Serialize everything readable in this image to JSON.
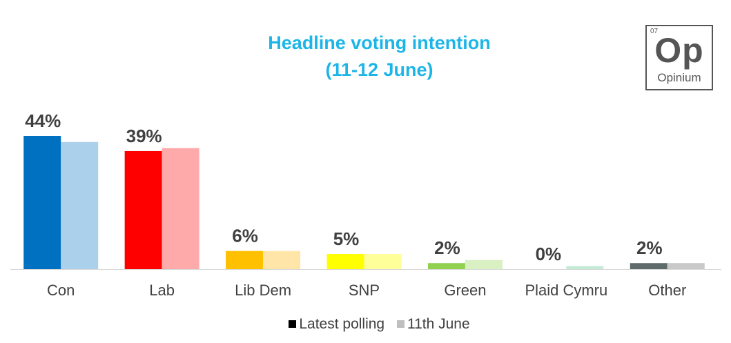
{
  "title": "Headline voting intention",
  "subtitle": "(11-12 June)",
  "logo": {
    "number": "07",
    "symbol": "Op",
    "name": "Opinium"
  },
  "legend": [
    {
      "label": "Latest polling",
      "color": "#000000"
    },
    {
      "label": "11th June",
      "color": "#bfbfbf"
    }
  ],
  "chart_data": {
    "type": "bar",
    "title": "Headline voting intention",
    "subtitle": "(11-12 June)",
    "categories": [
      "Con",
      "Lab",
      "Lib Dem",
      "SNP",
      "Green",
      "Plaid Cymru",
      "Other"
    ],
    "series": [
      {
        "name": "Latest polling",
        "values": [
          44,
          39,
          6,
          5,
          2,
          0,
          2
        ],
        "labels": [
          "44%",
          "39%",
          "6%",
          "5%",
          "2%",
          "0%",
          "2%"
        ],
        "colors": [
          "#0070c0",
          "#ff0000",
          "#ffc000",
          "#ffff00",
          "#92d050",
          "#00b050",
          "#5f6a6a"
        ]
      },
      {
        "name": "11th June",
        "values": [
          42,
          40,
          6,
          5,
          3,
          1,
          2
        ],
        "colors": [
          "#abd0eb",
          "#ffaaaa",
          "#ffe6a8",
          "#ffff99",
          "#d9f0c2",
          "#c2ead4",
          "#c9c9c9"
        ]
      }
    ],
    "ylim": [
      0,
      44
    ],
    "grid": false,
    "legend_position": "bottom"
  }
}
